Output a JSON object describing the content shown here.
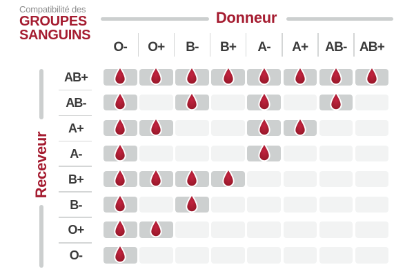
{
  "title": {
    "kicker": "Compatibilité des",
    "line1": "GROUPES",
    "line2": "SANGUINS"
  },
  "axes": {
    "donor": "Donneur",
    "receiver": "Receveur"
  },
  "icons": {
    "compatible_marker": "blood-drop-icon"
  },
  "chart_data": {
    "type": "heatmap",
    "title": "Compatibilité des groupes sanguins",
    "x_label": "Donneur",
    "y_label": "Receveur",
    "columns": [
      "O-",
      "O+",
      "B-",
      "B+",
      "A-",
      "A+",
      "AB-",
      "AB+"
    ],
    "rows": [
      "AB+",
      "AB-",
      "A+",
      "A-",
      "B+",
      "B-",
      "O+",
      "O-"
    ],
    "values": [
      [
        1,
        1,
        1,
        1,
        1,
        1,
        1,
        1
      ],
      [
        1,
        0,
        1,
        0,
        1,
        0,
        1,
        0
      ],
      [
        1,
        1,
        0,
        0,
        1,
        1,
        0,
        0
      ],
      [
        1,
        0,
        0,
        0,
        1,
        0,
        0,
        0
      ],
      [
        1,
        1,
        1,
        1,
        0,
        0,
        0,
        0
      ],
      [
        1,
        0,
        1,
        0,
        0,
        0,
        0,
        0
      ],
      [
        1,
        1,
        0,
        0,
        0,
        0,
        0,
        0
      ],
      [
        1,
        0,
        0,
        0,
        0,
        0,
        0,
        0
      ]
    ]
  },
  "colors": {
    "accent_red": "#a51c30",
    "kicker_gray": "#8c8c8c",
    "text_dark": "#3a3a3a",
    "cell_filled": "#cdd0d0",
    "cell_empty": "#f2f3f3",
    "line_gray": "#cccfcf"
  }
}
